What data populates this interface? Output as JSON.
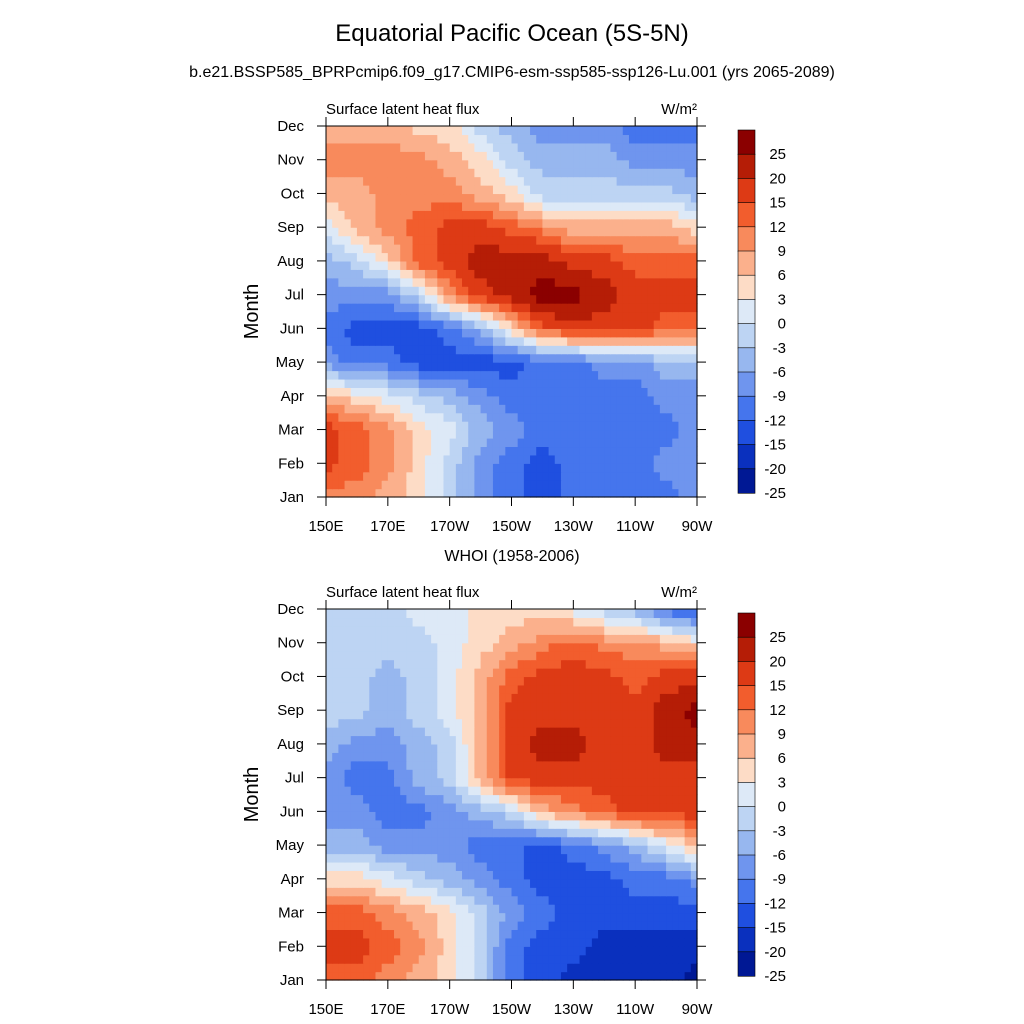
{
  "title": "Equatorial Pacific Ocean (5S-5N)",
  "subtitle": "b.e21.BSSP585_BPRPcmip6.f09_g17.CMIP6-esm-ssp585-ssp126-Lu.001 (yrs 2065-2089)",
  "second_title": "WHOI (1958-2006)",
  "chart_data": [
    {
      "type": "heatmap",
      "variable": "Surface latent heat flux",
      "units": "W/m²",
      "xlabel": "",
      "ylabel": "Month",
      "x_tick_labels": [
        "150E",
        "170E",
        "170W",
        "150W",
        "130W",
        "110W",
        "90W"
      ],
      "y_tick_labels": [
        "Jan",
        "Feb",
        "Mar",
        "Apr",
        "May",
        "Jun",
        "Jul",
        "Aug",
        "Sep",
        "Oct",
        "Nov",
        "Dec"
      ],
      "levels": [
        "25",
        "20",
        "15",
        "12",
        "9",
        "6",
        "3",
        "0",
        "-3",
        "-6",
        "-9",
        "-12",
        "-15",
        "-20",
        "-25"
      ],
      "values": [
        [
          9,
          9,
          6,
          3,
          -3,
          -9,
          -12,
          -15,
          -12,
          -12,
          -12,
          -12,
          -9
        ],
        [
          15,
          12,
          9,
          3,
          -3,
          -9,
          -12,
          -15,
          -12,
          -12,
          -12,
          -9,
          -9
        ],
        [
          15,
          12,
          9,
          3,
          0,
          -6,
          -9,
          -12,
          -12,
          -12,
          -12,
          -12,
          -9
        ],
        [
          6,
          3,
          0,
          -3,
          -6,
          -9,
          -12,
          -12,
          -12,
          -12,
          -12,
          -9,
          -9
        ],
        [
          -9,
          -12,
          -12,
          -15,
          -15,
          -15,
          -15,
          -12,
          -12,
          -9,
          -9,
          -6,
          -6
        ],
        [
          -12,
          -15,
          -15,
          -15,
          -12,
          -6,
          3,
          12,
          15,
          15,
          15,
          12,
          12
        ],
        [
          -9,
          -9,
          -9,
          -3,
          9,
          15,
          20,
          25,
          25,
          20,
          15,
          15,
          15
        ],
        [
          -6,
          -3,
          3,
          12,
          15,
          20,
          20,
          20,
          15,
          15,
          12,
          12,
          12
        ],
        [
          0,
          6,
          9,
          12,
          15,
          15,
          12,
          9,
          6,
          6,
          6,
          6,
          3
        ],
        [
          6,
          6,
          9,
          9,
          9,
          6,
          3,
          -3,
          -3,
          -3,
          -3,
          -3,
          -6
        ],
        [
          9,
          9,
          9,
          9,
          6,
          3,
          -3,
          -6,
          -6,
          -6,
          -9,
          -9,
          -9
        ],
        [
          6,
          6,
          6,
          3,
          3,
          -3,
          -6,
          -9,
          -9,
          -9,
          -12,
          -12,
          -12
        ]
      ]
    },
    {
      "type": "heatmap",
      "variable": "Surface latent heat flux",
      "units": "W/m²",
      "xlabel": "",
      "ylabel": "Month",
      "x_tick_labels": [
        "150E",
        "170E",
        "170W",
        "150W",
        "130W",
        "110W",
        "90W"
      ],
      "y_tick_labels": [
        "Jan",
        "Feb",
        "Mar",
        "Apr",
        "May",
        "Jun",
        "Jul",
        "Aug",
        "Sep",
        "Oct",
        "Nov",
        "Dec"
      ],
      "levels": [
        "25",
        "20",
        "15",
        "12",
        "9",
        "6",
        "3",
        "0",
        "-3",
        "-6",
        "-9",
        "-12",
        "-15",
        "-20",
        "-25"
      ],
      "values": [
        [
          12,
          12,
          9,
          6,
          3,
          -3,
          -12,
          -15,
          -20,
          -20,
          -20,
          -20,
          -25
        ],
        [
          15,
          15,
          12,
          9,
          3,
          -3,
          -12,
          -15,
          -15,
          -20,
          -20,
          -20,
          -20
        ],
        [
          12,
          12,
          9,
          6,
          3,
          -3,
          -9,
          -12,
          -15,
          -15,
          -15,
          -15,
          -15
        ],
        [
          3,
          3,
          0,
          -3,
          -6,
          -9,
          -12,
          -15,
          -15,
          -15,
          -12,
          -12,
          -9
        ],
        [
          -6,
          -6,
          -9,
          -9,
          -9,
          -12,
          -12,
          -15,
          -12,
          -9,
          -6,
          0,
          6
        ],
        [
          -9,
          -9,
          -12,
          -12,
          -9,
          -6,
          -3,
          6,
          9,
          12,
          15,
          15,
          15
        ],
        [
          -9,
          -12,
          -12,
          -6,
          -3,
          6,
          15,
          15,
          15,
          15,
          15,
          15,
          15
        ],
        [
          -6,
          -9,
          -9,
          -6,
          -3,
          6,
          15,
          20,
          20,
          15,
          15,
          20,
          20
        ],
        [
          -3,
          -3,
          -6,
          -3,
          0,
          6,
          15,
          15,
          15,
          15,
          15,
          20,
          25
        ],
        [
          -3,
          -3,
          -6,
          -3,
          0,
          6,
          12,
          15,
          15,
          15,
          12,
          15,
          15
        ],
        [
          -3,
          -3,
          -3,
          -3,
          0,
          3,
          6,
          9,
          12,
          9,
          9,
          6,
          3
        ],
        [
          -3,
          -3,
          -3,
          0,
          0,
          3,
          3,
          3,
          0,
          -3,
          -6,
          -12,
          -15
        ]
      ]
    }
  ],
  "colors": {
    "25": "#8b0000",
    "20": "#b51d06",
    "15": "#dd3a15",
    "12": "#f25d2d",
    "9": "#f88a5c",
    "6": "#fbb08c",
    "3": "#fddcc6",
    "0": "#dde9f7",
    "-3": "#bdd4f3",
    "-6": "#97b7ef",
    "-9": "#6f95ee",
    "-12": "#4575ed",
    "-15": "#1f4fe0",
    "-20": "#0a30be",
    "-25": "#001894"
  }
}
